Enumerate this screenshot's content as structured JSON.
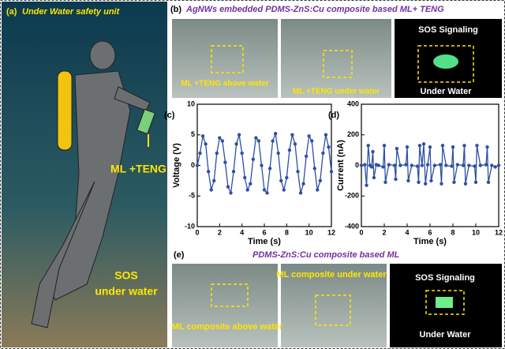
{
  "panel_a": {
    "label": "(a)",
    "title": "Under Water safety unit",
    "device_label": "ML +TENG",
    "sos_line1": "SOS",
    "sos_line2": "under water"
  },
  "panel_b": {
    "label": "(b)",
    "title": "AgNWs embedded PDMS-ZnS:Cu composite based ML+ TENG",
    "photos": [
      "ML +TENG above water",
      "ML +TENG under water"
    ],
    "signal_top": "SOS Signaling",
    "signal_bottom": "Under Water"
  },
  "chart_data": [
    {
      "type": "line",
      "panel_label": "(c)",
      "x_label": "Time (s)",
      "y_label": "Voltage (V)",
      "xlim": [
        0,
        12
      ],
      "xticks": [
        0,
        2,
        4,
        6,
        8,
        10,
        12
      ],
      "ylim": [
        -10,
        10
      ],
      "yticks": [
        -10,
        -5,
        0,
        5,
        10
      ],
      "x": [
        0,
        0.25,
        0.5,
        0.75,
        1,
        1.25,
        1.5,
        1.75,
        2,
        2.25,
        2.5,
        2.75,
        3,
        3.25,
        3.5,
        3.75,
        4,
        4.25,
        4.5,
        4.75,
        5,
        5.25,
        5.5,
        5.75,
        6,
        6.25,
        6.5,
        6.75,
        7,
        7.25,
        7.5,
        7.75,
        8,
        8.25,
        8.5,
        8.75,
        9,
        9.25,
        9.5,
        9.75,
        10,
        10.25,
        10.5,
        10.75,
        11,
        11.25,
        11.5,
        11.75,
        12
      ],
      "series": [
        {
          "color": "#2e4fa3",
          "values": [
            0,
            2,
            4.8,
            3.5,
            -1,
            -4,
            -2.5,
            2,
            4.5,
            4,
            0.5,
            -3.5,
            -4.5,
            -1,
            3.5,
            5,
            2,
            -2,
            -4,
            -3,
            1,
            4.5,
            4,
            0,
            -4,
            -4.5,
            -0.5,
            4,
            5.2,
            2,
            -2.5,
            -4,
            -2,
            2.5,
            5,
            3.5,
            -1,
            -4.5,
            -3,
            1.5,
            4.8,
            4,
            -0.5,
            -4,
            -2.5,
            2,
            5,
            3,
            -1
          ]
        }
      ]
    },
    {
      "type": "line",
      "panel_label": "(d)",
      "x_label": "Time (s)",
      "y_label": "Current (nA)",
      "xlim": [
        0,
        12
      ],
      "xticks": [
        0,
        2,
        4,
        6,
        8,
        10,
        12
      ],
      "ylim": [
        -400,
        400
      ],
      "yticks": [
        -400,
        -200,
        0,
        200,
        400
      ],
      "x": [
        0,
        0.3,
        0.45,
        0.6,
        0.75,
        0.9,
        1.0,
        1.1,
        1.3,
        1.5,
        1.9,
        2.0,
        2.1,
        2.4,
        2.9,
        3.0,
        3.1,
        3.4,
        3.9,
        4.0,
        4.1,
        4.4,
        4.9,
        5.0,
        5.1,
        5.3,
        5.45,
        5.6,
        5.8,
        6.0,
        6.1,
        6.4,
        6.9,
        7.0,
        7.1,
        7.4,
        7.9,
        8.0,
        8.1,
        8.4,
        8.9,
        9.0,
        9.1,
        9.4,
        9.9,
        10.0,
        10.1,
        10.4,
        10.9,
        11.0,
        11.1,
        11.4,
        11.7,
        12
      ],
      "series": [
        {
          "color": "#2e4fa3",
          "values": [
            0,
            5,
            -130,
            130,
            0,
            -10,
            90,
            -80,
            5,
            0,
            -10,
            130,
            -110,
            5,
            0,
            -90,
            110,
            0,
            5,
            120,
            -100,
            0,
            -5,
            -110,
            130,
            0,
            140,
            -120,
            5,
            120,
            -100,
            0,
            5,
            -120,
            130,
            0,
            -5,
            120,
            -110,
            5,
            0,
            130,
            -120,
            0,
            -5,
            -110,
            130,
            0,
            5,
            120,
            -110,
            0,
            -10,
            0
          ]
        }
      ]
    }
  ],
  "panel_e": {
    "label": "(e)",
    "title": "PDMS-ZnS:Cu composite based ML",
    "photo1": "ML composite above water",
    "photo2": "ML composite under water",
    "signal_top": "SOS Signaling",
    "signal_bottom": "Under Water"
  }
}
